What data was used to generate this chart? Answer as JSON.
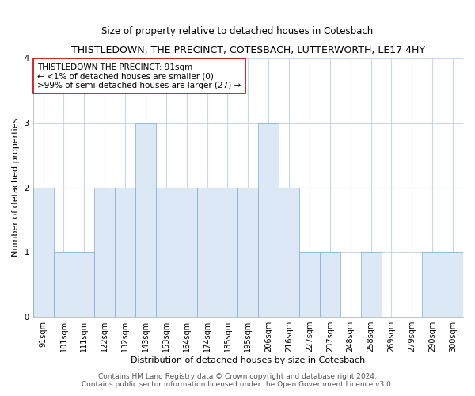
{
  "title": "THISTLEDOWN, THE PRECINCT, COTESBACH, LUTTERWORTH, LE17 4HY",
  "subtitle": "Size of property relative to detached houses in Cotesbach",
  "xlabel": "Distribution of detached houses by size in Cotesbach",
  "ylabel": "Number of detached properties",
  "bar_labels": [
    "91sqm",
    "101sqm",
    "111sqm",
    "122sqm",
    "132sqm",
    "143sqm",
    "153sqm",
    "164sqm",
    "174sqm",
    "185sqm",
    "195sqm",
    "206sqm",
    "216sqm",
    "227sqm",
    "237sqm",
    "248sqm",
    "258sqm",
    "269sqm",
    "279sqm",
    "290sqm",
    "300sqm"
  ],
  "bar_values": [
    2,
    1,
    1,
    2,
    2,
    3,
    2,
    2,
    2,
    2,
    2,
    3,
    2,
    1,
    1,
    0,
    1,
    0,
    0,
    1,
    1
  ],
  "bar_color": "#dce8f5",
  "bar_edgecolor": "#7aafd4",
  "ylim": [
    0,
    4
  ],
  "yticks": [
    0,
    1,
    2,
    3,
    4
  ],
  "annotation_box_text": "THISTLEDOWN THE PRECINCT: 91sqm\n← <1% of detached houses are smaller (0)\n>99% of semi-detached houses are larger (27) →",
  "annotation_box_color": "#ffffff",
  "annotation_box_edgecolor": "#cc0000",
  "footer_line1": "Contains HM Land Registry data © Crown copyright and database right 2024.",
  "footer_line2": "Contains public sector information licensed under the Open Government Licence v3.0.",
  "background_color": "#ffffff",
  "grid_color": "#c8d8e8",
  "title_fontsize": 9,
  "subtitle_fontsize": 8.5,
  "axis_label_fontsize": 8,
  "tick_fontsize": 7,
  "footer_fontsize": 6.5,
  "annotation_fontsize": 7.5
}
